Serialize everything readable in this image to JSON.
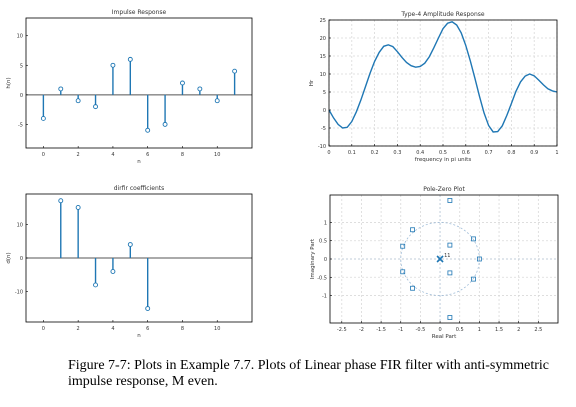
{
  "colors": {
    "stem": "#1f77b4",
    "curve": "#1f77b4",
    "grid": "#d9d9d9",
    "axis": "#000000",
    "zero_line": "#555555"
  },
  "caption": "Figure 7-7: Plots in Example 7.7. Plots of Linear phase FIR filter with anti-symmetric impulse response, M even.",
  "chart_data": [
    {
      "type": "stem",
      "title": "Impulse Response",
      "xlabel": "n",
      "ylabel": "h(n)",
      "xlim": [
        -1,
        12
      ],
      "ylim": [
        -9,
        13
      ],
      "xticks": [
        0,
        2,
        4,
        6,
        8,
        10
      ],
      "yticks": [
        -5,
        0,
        5,
        10
      ],
      "grid": false,
      "x": [
        0,
        1,
        2,
        3,
        4,
        5,
        6,
        7,
        8,
        9,
        10,
        11
      ],
      "values": [
        -4,
        1,
        -1,
        -2,
        5,
        6,
        -6,
        -5,
        2,
        1,
        -1,
        4
      ]
    },
    {
      "type": "line",
      "title": "Type-4 Amplitude Response",
      "xlabel": "frequency in pi units",
      "ylabel": "Hr",
      "xlim": [
        0,
        1
      ],
      "ylim": [
        -10,
        25
      ],
      "xticks": [
        0,
        0.1,
        0.2,
        0.3,
        0.4,
        0.5,
        0.6,
        0.7,
        0.8,
        0.9,
        1
      ],
      "yticks": [
        -10,
        -5,
        0,
        5,
        10,
        15,
        20,
        25
      ],
      "grid": true,
      "x": [
        0,
        0.02,
        0.04,
        0.06,
        0.08,
        0.1,
        0.12,
        0.14,
        0.16,
        0.18,
        0.2,
        0.22,
        0.24,
        0.26,
        0.28,
        0.3,
        0.32,
        0.34,
        0.36,
        0.38,
        0.4,
        0.42,
        0.44,
        0.46,
        0.48,
        0.5,
        0.52,
        0.54,
        0.56,
        0.58,
        0.6,
        0.62,
        0.64,
        0.66,
        0.68,
        0.7,
        0.72,
        0.74,
        0.76,
        0.78,
        0.8,
        0.82,
        0.84,
        0.86,
        0.88,
        0.9,
        0.92,
        0.94,
        0.96,
        0.98,
        1
      ],
      "y": [
        0,
        -2.2,
        -4,
        -5,
        -4.8,
        -3.2,
        -0.5,
        2.8,
        6.5,
        10.2,
        13.5,
        16,
        17.7,
        18.1,
        17.6,
        16.2,
        14.6,
        13.2,
        12.3,
        11.9,
        12.1,
        13,
        14.8,
        17.3,
        20,
        22.6,
        24.1,
        24.5,
        23.6,
        21.4,
        17.9,
        13.6,
        8.8,
        3.8,
        -0.8,
        -4.3,
        -6.1,
        -6,
        -4.4,
        -1.5,
        1.8,
        5.2,
        7.8,
        9.4,
        10,
        9.5,
        8.3,
        7,
        5.9,
        5.3,
        5
      ],
      "tick_labels_x": [
        "0",
        "0.1",
        "0.2",
        "0.3",
        "0.4",
        "0.5",
        "0.6",
        "0.7",
        "0.8",
        "0.9",
        "1"
      ]
    },
    {
      "type": "stem",
      "title": "dirfir coefficients",
      "xlabel": "n",
      "ylabel": "d(n)",
      "xlim": [
        -1,
        12
      ],
      "ylim": [
        -19,
        19
      ],
      "xticks": [
        0,
        2,
        4,
        6,
        8,
        10
      ],
      "yticks": [
        -10,
        0,
        10
      ],
      "grid": false,
      "x": [
        1,
        2,
        3,
        4,
        5,
        6
      ],
      "values": [
        17,
        15,
        -8,
        -4,
        4,
        -15
      ]
    },
    {
      "type": "scatter",
      "title": "Pole-Zero Plot",
      "xlabel": "Real Part",
      "ylabel": "Imaginary Part",
      "xlim": [
        -2.8,
        3
      ],
      "ylim": [
        -1.75,
        1.75
      ],
      "xticks": [
        -2.5,
        -2,
        -1.5,
        -1,
        -0.5,
        0,
        0.5,
        1,
        1.5,
        2,
        2.5
      ],
      "yticks": [
        -1,
        -0.5,
        0,
        0.5,
        1
      ],
      "grid": true,
      "zeros": [
        [
          0.25,
          1.6
        ],
        [
          0.25,
          -1.6
        ],
        [
          -0.7,
          0.8
        ],
        [
          -0.7,
          -0.8
        ],
        [
          -0.95,
          0.35
        ],
        [
          -0.95,
          -0.35
        ],
        [
          0.25,
          0.38
        ],
        [
          0.25,
          -0.38
        ],
        [
          0.85,
          0.55
        ],
        [
          0.85,
          -0.55
        ],
        [
          1.0,
          0
        ]
      ],
      "poles": [
        [
          0,
          0
        ]
      ],
      "pole_label": "11",
      "unit_circle": true
    }
  ]
}
